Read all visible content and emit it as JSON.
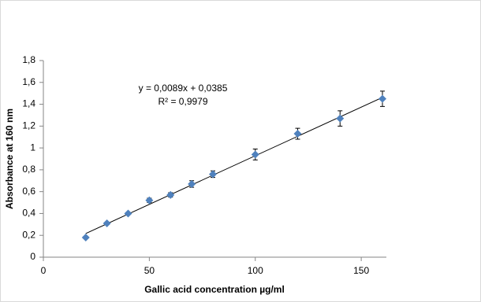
{
  "chart_data": {
    "type": "scatter",
    "x_label": "Gallic acid concentration µg/ml",
    "y_label": "Absorbance at 160 nm",
    "x": [
      20,
      30,
      40,
      50,
      60,
      70,
      80,
      100,
      120,
      140,
      160
    ],
    "values": [
      0.18,
      0.31,
      0.4,
      0.52,
      0.57,
      0.67,
      0.76,
      0.94,
      1.13,
      1.27,
      1.45
    ],
    "errors": [
      0.01,
      0.01,
      0.01,
      0.02,
      0.02,
      0.03,
      0.03,
      0.05,
      0.05,
      0.07,
      0.07
    ],
    "color": "#4f81bd",
    "trendline": {
      "slope": 0.0089,
      "intercept": 0.0385,
      "label": "y = 0,0089x + 0,0385",
      "r2_label": "R² = 0,9979"
    },
    "xlim": [
      0,
      160
    ],
    "xticks": [
      0,
      50,
      100,
      150
    ],
    "ylim": [
      0,
      1.8
    ],
    "yticks": [
      0,
      {
        "value": 0.2,
        "label": "0,2"
      },
      {
        "value": 0.4,
        "label": "0,4"
      },
      {
        "value": 0.6,
        "label": "0,6"
      },
      {
        "value": 0.8,
        "label": "0,8"
      },
      1,
      {
        "value": 1.2,
        "label": "1,2"
      },
      {
        "value": 1.4,
        "label": "1,4"
      },
      {
        "value": 1.6,
        "label": "1,6"
      },
      {
        "value": 1.8,
        "label": "1,8"
      }
    ],
    "grid": false
  }
}
